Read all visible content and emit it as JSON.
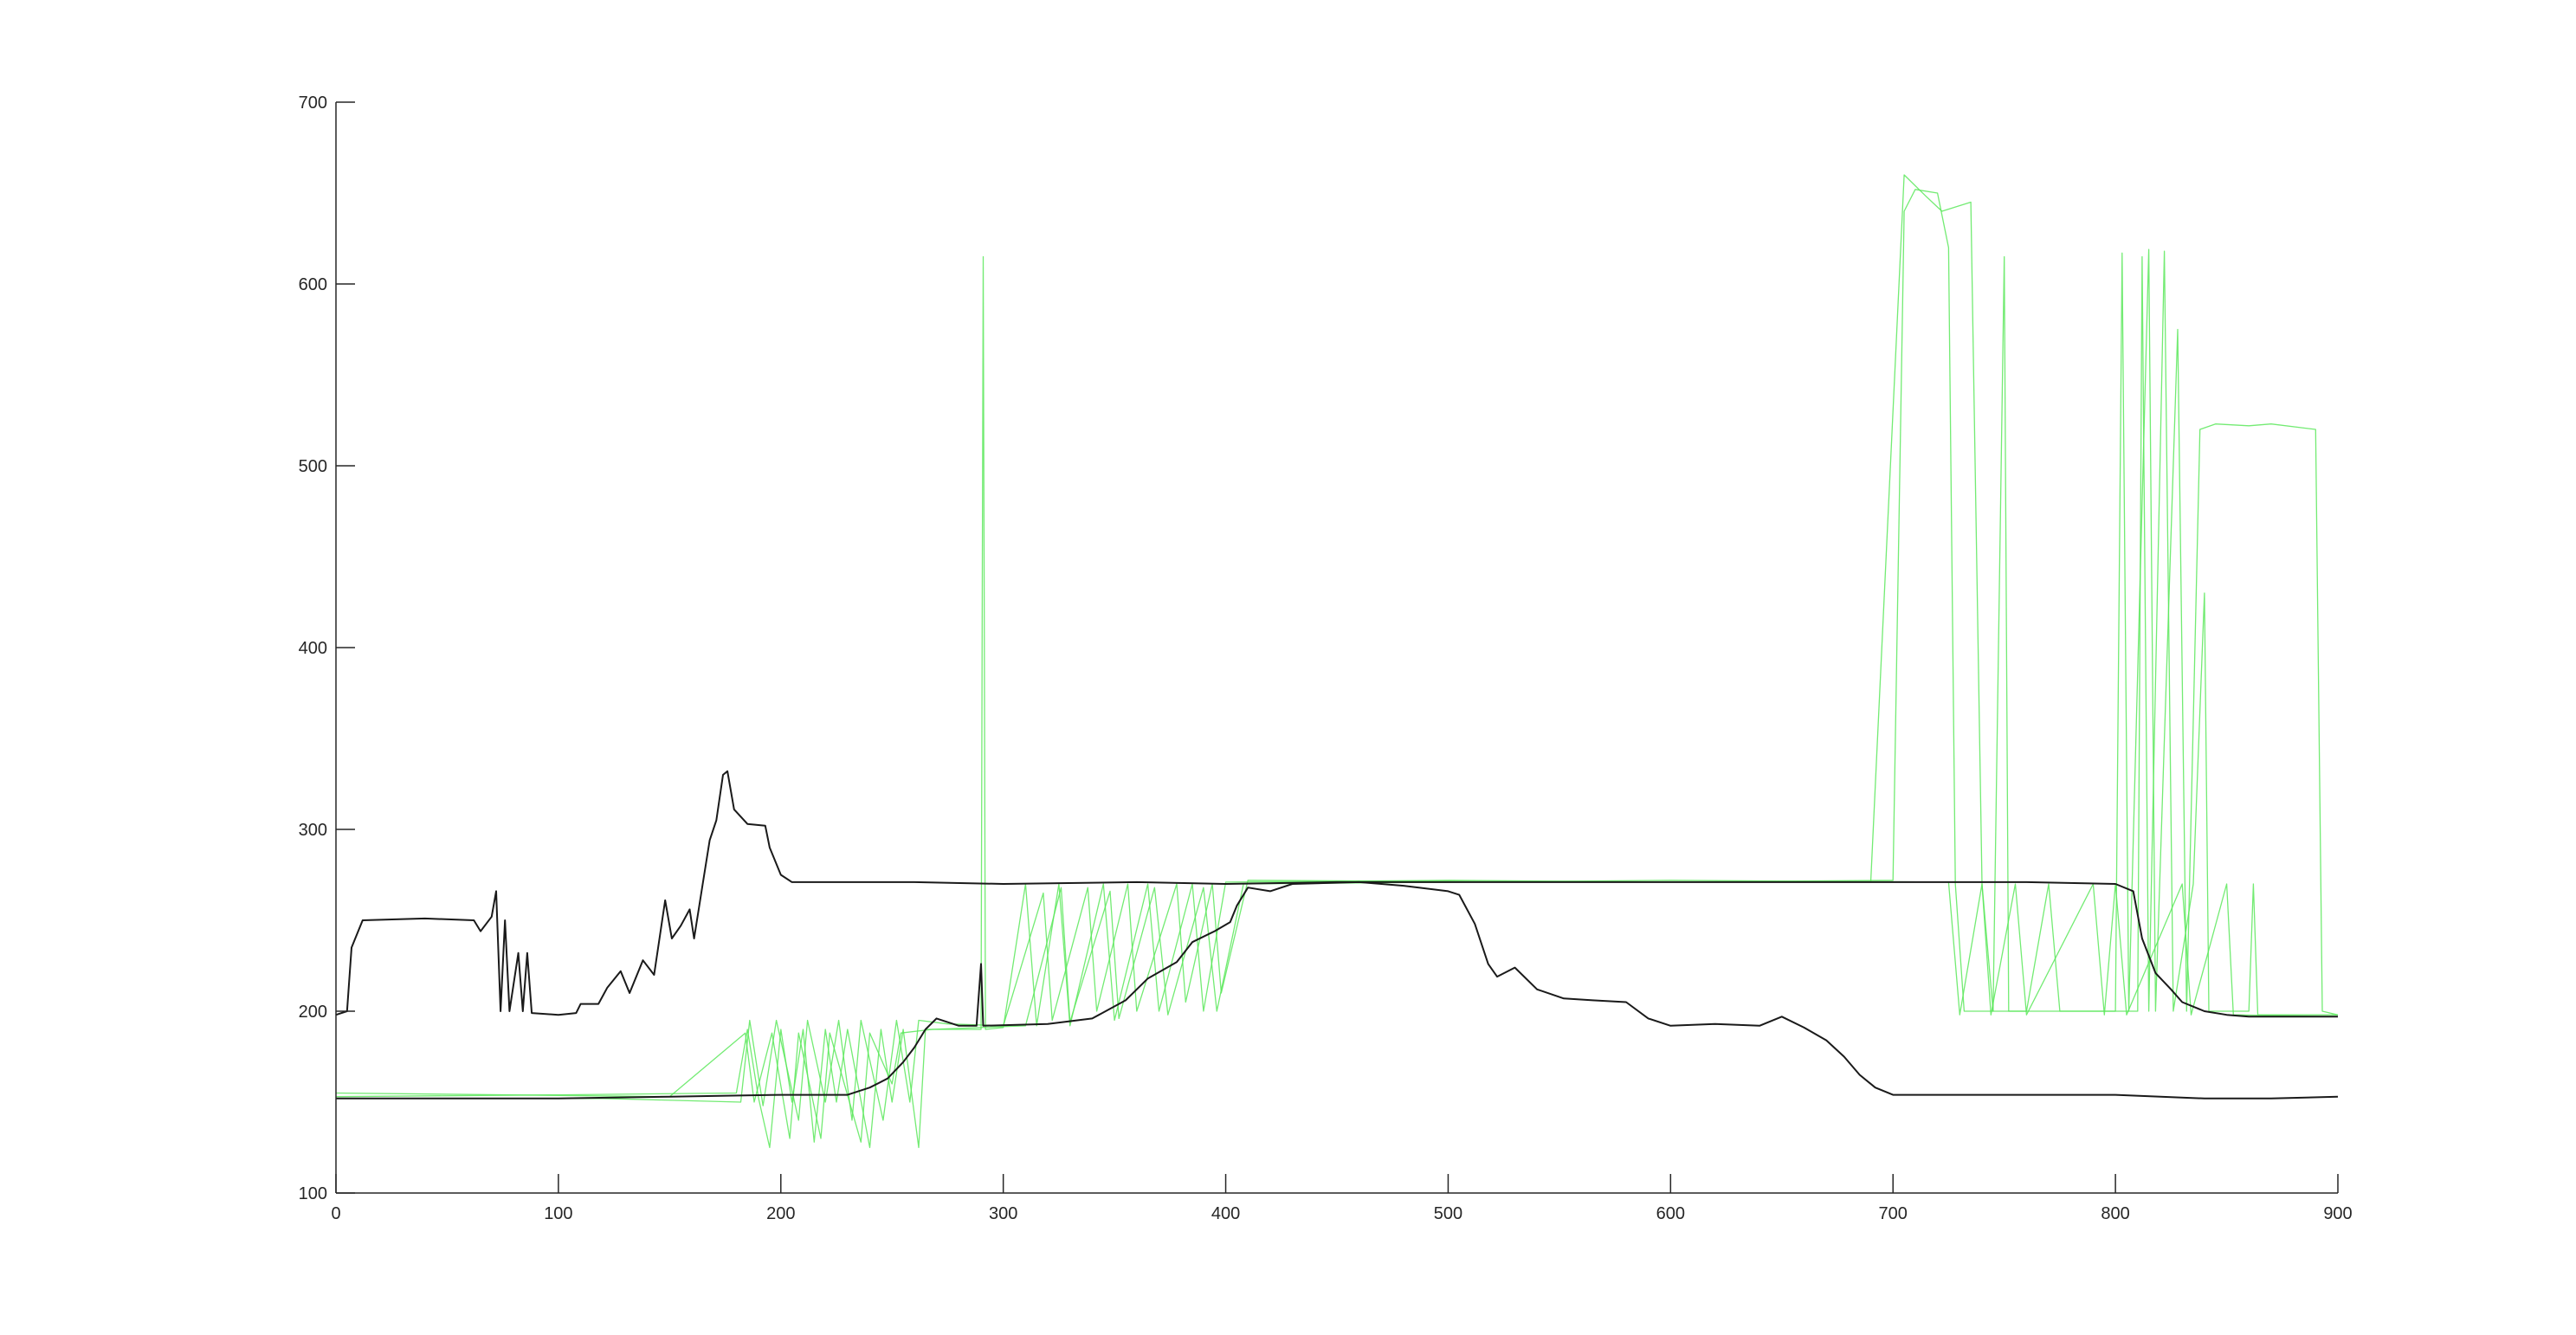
{
  "chart_data": {
    "type": "line",
    "title": "",
    "xlabel": "",
    "ylabel": "",
    "xlim": [
      0,
      900
    ],
    "ylim": [
      100,
      700
    ],
    "grid": false,
    "legend": "none",
    "xticks": [
      0,
      100,
      200,
      300,
      400,
      500,
      600,
      700,
      800,
      900
    ],
    "yticks": [
      100,
      200,
      300,
      400,
      500,
      600,
      700
    ],
    "xtick_labels": [
      "0",
      "100",
      "200",
      "300",
      "400",
      "500",
      "600",
      "700",
      "800",
      "900"
    ],
    "ytick_labels": [
      "100",
      "200",
      "300",
      "400",
      "500",
      "600",
      "700"
    ],
    "colors": {
      "dark_line": "#1a1a1a",
      "green_lines": "#4de64d",
      "green_bold": "#22cc22",
      "axis": "#262626"
    },
    "series": [
      {
        "color": "#1a1a1a",
        "points": [
          [
            0,
            198
          ],
          [
            5,
            200
          ],
          [
            7,
            235
          ],
          [
            12,
            250
          ],
          [
            40,
            251
          ],
          [
            62,
            250
          ],
          [
            65,
            244
          ],
          [
            70,
            252
          ],
          [
            72,
            266
          ],
          [
            74,
            200
          ],
          [
            76,
            250
          ],
          [
            78,
            200
          ],
          [
            82,
            232
          ],
          [
            84,
            200
          ],
          [
            86,
            232
          ],
          [
            88,
            199
          ],
          [
            100,
            198
          ],
          [
            108,
            199
          ],
          [
            110,
            204
          ],
          [
            118,
            204
          ],
          [
            122,
            213
          ],
          [
            128,
            222
          ],
          [
            132,
            210
          ],
          [
            138,
            228
          ],
          [
            143,
            220
          ],
          [
            148,
            261
          ],
          [
            151,
            240
          ],
          [
            155,
            247
          ],
          [
            159,
            256
          ],
          [
            161,
            240
          ],
          [
            165,
            271
          ],
          [
            168,
            294
          ],
          [
            171,
            305
          ],
          [
            174,
            330
          ],
          [
            176,
            332
          ],
          [
            179,
            311
          ],
          [
            185,
            303
          ],
          [
            193,
            302
          ],
          [
            195,
            290
          ],
          [
            200,
            275
          ],
          [
            205,
            271
          ],
          [
            260,
            271
          ],
          [
            300,
            270
          ],
          [
            360,
            271
          ],
          [
            400,
            270
          ],
          [
            450,
            271
          ],
          [
            500,
            271
          ],
          [
            550,
            271
          ],
          [
            600,
            271
          ],
          [
            650,
            271
          ],
          [
            700,
            271
          ],
          [
            760,
            271
          ],
          [
            800,
            270
          ],
          [
            808,
            266
          ],
          [
            812,
            240
          ],
          [
            818,
            221
          ],
          [
            825,
            212
          ],
          [
            830,
            205
          ],
          [
            840,
            200
          ],
          [
            850,
            198
          ],
          [
            860,
            197
          ],
          [
            900,
            197
          ]
        ]
      },
      {
        "color": "#1a1a1a",
        "points": [
          [
            0,
            152
          ],
          [
            50,
            152
          ],
          [
            100,
            152
          ],
          [
            150,
            153
          ],
          [
            200,
            154
          ],
          [
            230,
            154
          ],
          [
            240,
            158
          ],
          [
            248,
            163
          ],
          [
            255,
            172
          ],
          [
            260,
            180
          ],
          [
            265,
            190
          ],
          [
            270,
            196
          ],
          [
            280,
            192
          ],
          [
            288,
            192
          ],
          [
            290,
            226
          ],
          [
            291,
            192
          ],
          [
            320,
            193
          ],
          [
            340,
            196
          ],
          [
            355,
            206
          ],
          [
            365,
            218
          ],
          [
            378,
            227
          ],
          [
            385,
            238
          ],
          [
            395,
            244
          ],
          [
            402,
            249
          ],
          [
            405,
            258
          ],
          [
            410,
            268
          ],
          [
            420,
            266
          ],
          [
            430,
            270
          ],
          [
            460,
            271
          ],
          [
            480,
            269
          ],
          [
            500,
            266
          ],
          [
            505,
            264
          ],
          [
            512,
            248
          ],
          [
            518,
            226
          ],
          [
            522,
            219
          ],
          [
            530,
            224
          ],
          [
            540,
            212
          ],
          [
            552,
            207
          ],
          [
            565,
            206
          ],
          [
            580,
            205
          ],
          [
            590,
            196
          ],
          [
            600,
            192
          ],
          [
            620,
            193
          ],
          [
            640,
            192
          ],
          [
            650,
            197
          ],
          [
            660,
            191
          ],
          [
            670,
            184
          ],
          [
            678,
            175
          ],
          [
            685,
            165
          ],
          [
            692,
            158
          ],
          [
            700,
            154
          ],
          [
            720,
            154
          ],
          [
            760,
            154
          ],
          [
            800,
            154
          ],
          [
            840,
            152
          ],
          [
            870,
            152
          ],
          [
            900,
            153
          ]
        ]
      },
      {
        "color": "#5ae85a",
        "points": [
          [
            0,
            153
          ],
          [
            100,
            154
          ],
          [
            180,
            155
          ],
          [
            185,
            190
          ],
          [
            190,
            152
          ],
          [
            195,
            125
          ],
          [
            200,
            190
          ],
          [
            205,
            150
          ],
          [
            210,
            190
          ],
          [
            215,
            128
          ],
          [
            220,
            190
          ],
          [
            225,
            150
          ],
          [
            230,
            190
          ],
          [
            240,
            125
          ],
          [
            245,
            190
          ],
          [
            250,
            150
          ],
          [
            255,
            190
          ],
          [
            262,
            125
          ],
          [
            265,
            190
          ],
          [
            290,
            190
          ],
          [
            291,
            615
          ],
          [
            292,
            190
          ],
          [
            300,
            191
          ],
          [
            310,
            270
          ],
          [
            315,
            192
          ],
          [
            325,
            270
          ],
          [
            330,
            192
          ],
          [
            345,
            270
          ],
          [
            350,
            195
          ],
          [
            365,
            270
          ],
          [
            370,
            200
          ],
          [
            385,
            270
          ],
          [
            390,
            200
          ],
          [
            400,
            271
          ],
          [
            500,
            272
          ],
          [
            600,
            271
          ],
          [
            700,
            272
          ],
          [
            705,
            640
          ],
          [
            710,
            652
          ],
          [
            720,
            650
          ],
          [
            725,
            620
          ],
          [
            728,
            270
          ],
          [
            732,
            200
          ],
          [
            745,
            200
          ],
          [
            750,
            615
          ],
          [
            752,
            200
          ],
          [
            800,
            200
          ],
          [
            803,
            617
          ],
          [
            806,
            200
          ],
          [
            815,
            619
          ],
          [
            818,
            200
          ],
          [
            828,
            575
          ],
          [
            832,
            200
          ],
          [
            838,
            520
          ],
          [
            845,
            523
          ],
          [
            860,
            522
          ],
          [
            870,
            523
          ],
          [
            890,
            520
          ],
          [
            893,
            200
          ],
          [
            900,
            198
          ]
        ]
      },
      {
        "color": "#5ae85a",
        "points": [
          [
            0,
            152
          ],
          [
            120,
            152
          ],
          [
            182,
            150
          ],
          [
            186,
            195
          ],
          [
            192,
            148
          ],
          [
            198,
            195
          ],
          [
            208,
            140
          ],
          [
            212,
            195
          ],
          [
            220,
            150
          ],
          [
            226,
            195
          ],
          [
            232,
            140
          ],
          [
            236,
            195
          ],
          [
            246,
            140
          ],
          [
            252,
            195
          ],
          [
            258,
            150
          ],
          [
            262,
            195
          ],
          [
            275,
            193
          ],
          [
            300,
            192
          ],
          [
            318,
            265
          ],
          [
            322,
            195
          ],
          [
            338,
            268
          ],
          [
            342,
            200
          ],
          [
            356,
            270
          ],
          [
            360,
            200
          ],
          [
            378,
            270
          ],
          [
            382,
            205
          ],
          [
            394,
            270
          ],
          [
            398,
            210
          ],
          [
            410,
            272
          ],
          [
            550,
            271
          ],
          [
            690,
            271
          ],
          [
            705,
            660
          ],
          [
            715,
            648
          ],
          [
            722,
            640
          ],
          [
            735,
            645
          ],
          [
            740,
            270
          ],
          [
            745,
            200
          ],
          [
            760,
            200
          ],
          [
            770,
            270
          ],
          [
            775,
            200
          ],
          [
            810,
            200
          ],
          [
            812,
            615
          ],
          [
            815,
            200
          ],
          [
            822,
            618
          ],
          [
            826,
            200
          ],
          [
            835,
            270
          ],
          [
            840,
            430
          ],
          [
            842,
            200
          ],
          [
            860,
            200
          ],
          [
            862,
            270
          ],
          [
            864,
            198
          ],
          [
            900,
            198
          ]
        ]
      },
      {
        "color": "#5ae85a",
        "points": [
          [
            0,
            155
          ],
          [
            150,
            153
          ],
          [
            184,
            188
          ],
          [
            188,
            150
          ],
          [
            196,
            188
          ],
          [
            204,
            130
          ],
          [
            208,
            188
          ],
          [
            218,
            130
          ],
          [
            222,
            188
          ],
          [
            236,
            128
          ],
          [
            240,
            188
          ],
          [
            250,
            160
          ],
          [
            254,
            188
          ],
          [
            268,
            190
          ],
          [
            310,
            192
          ],
          [
            326,
            268
          ],
          [
            330,
            194
          ],
          [
            348,
            266
          ],
          [
            352,
            196
          ],
          [
            368,
            268
          ],
          [
            374,
            198
          ],
          [
            390,
            268
          ],
          [
            396,
            200
          ],
          [
            408,
            270
          ],
          [
            600,
            272
          ],
          [
            725,
            271
          ],
          [
            730,
            198
          ],
          [
            740,
            270
          ],
          [
            744,
            198
          ],
          [
            755,
            270
          ],
          [
            760,
            198
          ],
          [
            790,
            270
          ],
          [
            795,
            198
          ],
          [
            800,
            270
          ],
          [
            805,
            198
          ],
          [
            830,
            270
          ],
          [
            834,
            198
          ],
          [
            850,
            270
          ],
          [
            853,
            198
          ],
          [
            900,
            197
          ]
        ]
      }
    ]
  }
}
